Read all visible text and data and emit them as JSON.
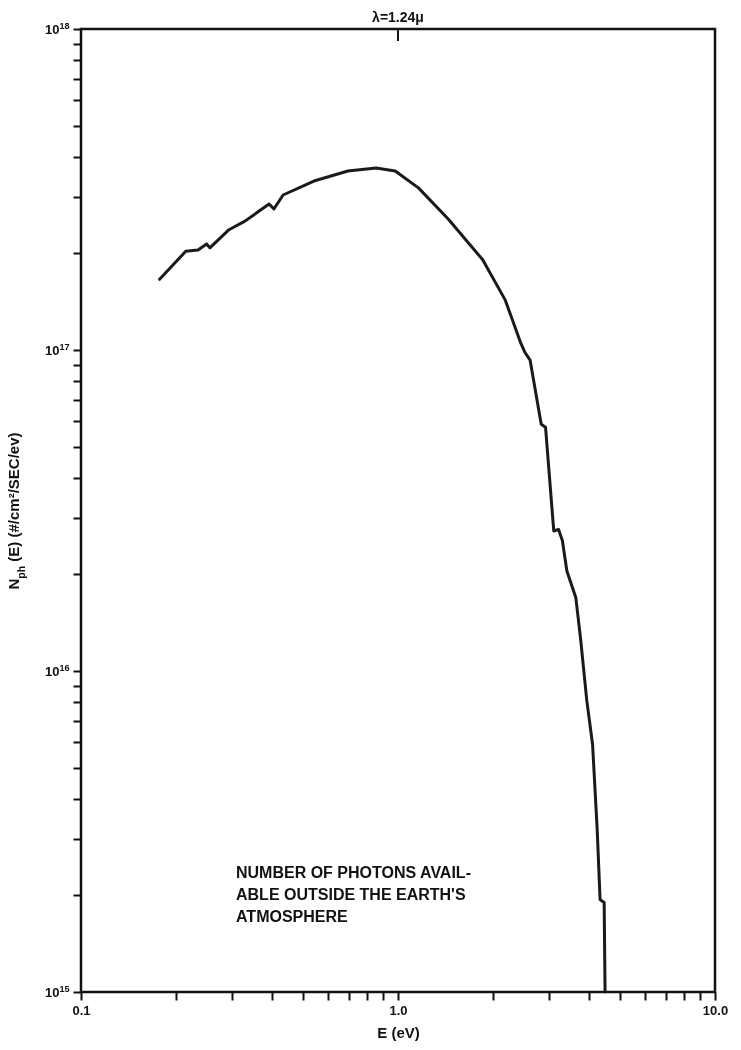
{
  "chart_data": {
    "type": "line",
    "xlabel": "E (eV)",
    "ylabel": "N$_{ph}$ (E) (#/cm²/SEC/ev)",
    "x": [
      0.177,
      0.214,
      0.234,
      0.249,
      0.255,
      0.293,
      0.329,
      0.392,
      0.406,
      0.434,
      0.543,
      0.695,
      0.853,
      0.98,
      1.16,
      1.44,
      1.85,
      2.18,
      2.44,
      2.51,
      2.61,
      2.83,
      2.92,
      2.95,
      3.1,
      3.21,
      3.3,
      3.41,
      3.64,
      3.77,
      3.94,
      4.11,
      4.25,
      4.34,
      4.47,
      4.5
    ],
    "series": [
      {
        "color": "#1a1a1a",
        "values": [
          1.66e+17,
          2.03e+17,
          2.05e+17,
          2.14e+17,
          2.08e+17,
          2.37e+17,
          2.52e+17,
          2.85e+17,
          2.75e+17,
          3.04e+17,
          3.36e+17,
          3.61e+17,
          3.69e+17,
          3.61e+17,
          3.2e+17,
          2.56e+17,
          1.91e+17,
          1.43e+17,
          1.05e+17,
          9.86e+16,
          9.3e+16,
          5.87e+16,
          5.75e+16,
          5.06e+16,
          2.73e+16,
          2.76e+16,
          2.55e+16,
          2.05e+16,
          1.69e+16,
          1.25e+16,
          8100000000000000.0,
          5900000000000000.0,
          3200000000000000.0,
          1940000000000000.0,
          1900000000000000.0,
          1000000000000000.0
        ]
      }
    ],
    "log": "xy",
    "xlim": [
      0.1,
      10
    ],
    "ylim": [
      1000000000000000.0,
      1e+18
    ],
    "xticks": [
      {
        "value": 0.1,
        "label": "0.1"
      },
      {
        "value": 0.2,
        "label": null
      },
      {
        "value": 0.3,
        "label": null
      },
      {
        "value": 0.4,
        "label": null
      },
      {
        "value": 0.5,
        "label": null
      },
      {
        "value": 0.6,
        "label": null
      },
      {
        "value": 0.7,
        "label": null
      },
      {
        "value": 0.8,
        "label": null
      },
      {
        "value": 0.9,
        "label": null
      },
      {
        "value": 1,
        "label": "1.0"
      },
      {
        "value": 2,
        "label": null
      },
      {
        "value": 3,
        "label": null
      },
      {
        "value": 4,
        "label": null
      },
      {
        "value": 5,
        "label": null
      },
      {
        "value": 6,
        "label": null
      },
      {
        "value": 7,
        "label": null
      },
      {
        "value": 8,
        "label": null
      },
      {
        "value": 9,
        "label": null
      },
      {
        "value": 10,
        "label": "10.0"
      }
    ],
    "yticks": [
      {
        "value": 1000000000000000.0,
        "label": "10$^{15}$"
      },
      {
        "value": 2000000000000000.0,
        "label": null
      },
      {
        "value": 3000000000000000.0,
        "label": null
      },
      {
        "value": 4000000000000000.0,
        "label": null
      },
      {
        "value": 5000000000000000.0,
        "label": null
      },
      {
        "value": 6000000000000000.0,
        "label": null
      },
      {
        "value": 7000000000000000.0,
        "label": null
      },
      {
        "value": 8000000000000000.0,
        "label": null
      },
      {
        "value": 9000000000000000.0,
        "label": null
      },
      {
        "value": 1e+16,
        "label": "10$^{16}$"
      },
      {
        "value": 2e+16,
        "label": null
      },
      {
        "value": 3e+16,
        "label": null
      },
      {
        "value": 4e+16,
        "label": null
      },
      {
        "value": 5e+16,
        "label": null
      },
      {
        "value": 6e+16,
        "label": null
      },
      {
        "value": 7e+16,
        "label": null
      },
      {
        "value": 8e+16,
        "label": null
      },
      {
        "value": 9e+16,
        "label": null
      },
      {
        "value": 1e+17,
        "label": "10$^{17}$"
      },
      {
        "value": 2e+17,
        "label": null
      },
      {
        "value": 3e+17,
        "label": null
      },
      {
        "value": 4e+17,
        "label": null
      },
      {
        "value": 5e+17,
        "label": null
      },
      {
        "value": 6e+17,
        "label": null
      },
      {
        "value": 7e+17,
        "label": null
      },
      {
        "value": 8e+17,
        "label": null
      },
      {
        "value": 9e+17,
        "label": null
      },
      {
        "value": 1e+18,
        "label": "10$^{18}$"
      }
    ],
    "annotations": [
      {
        "text": "λ=1.24μ",
        "x": 1
      },
      "NUMBER OF PHOTONS AVAIL-\nABLE OUTSIDE THE EARTH'S\nATMOSPHERE"
    ]
  }
}
